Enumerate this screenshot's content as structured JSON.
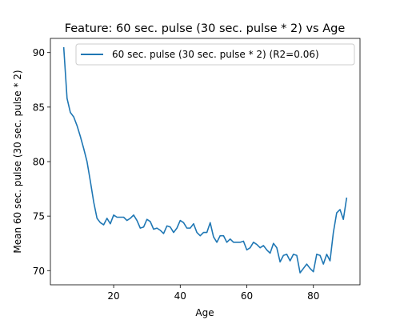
{
  "chart_data": {
    "type": "line",
    "title": "Feature: 60 sec. pulse (30 sec. pulse * 2) vs Age",
    "xlabel": "Age",
    "ylabel": "Mean 60 sec. pulse (30 sec. pulse * 2)",
    "xlim": [
      1,
      94
    ],
    "ylim": [
      68.7,
      91.3
    ],
    "xticks": [
      20,
      40,
      60,
      80
    ],
    "yticks": [
      70,
      75,
      80,
      85,
      90
    ],
    "grid": false,
    "legend_position": "top-right",
    "series": [
      {
        "name": "60 sec. pulse (30 sec. pulse * 2) (R2=0.06)",
        "color": "#1f77b4",
        "x": [
          5,
          6,
          7,
          8,
          9,
          10,
          11,
          12,
          13,
          14,
          15,
          16,
          17,
          18,
          19,
          20,
          21,
          22,
          23,
          24,
          25,
          26,
          27,
          28,
          29,
          30,
          31,
          32,
          33,
          34,
          35,
          36,
          37,
          38,
          39,
          40,
          41,
          42,
          43,
          44,
          45,
          46,
          47,
          48,
          49,
          50,
          51,
          52,
          53,
          54,
          55,
          56,
          57,
          58,
          59,
          60,
          61,
          62,
          63,
          64,
          65,
          66,
          67,
          68,
          69,
          70,
          71,
          72,
          73,
          74,
          75,
          76,
          77,
          78,
          79,
          80,
          81,
          82,
          83,
          84,
          85,
          86,
          87,
          88,
          89,
          90
        ],
        "y": [
          90.5,
          85.8,
          84.5,
          84.1,
          83.3,
          82.3,
          81.2,
          80.0,
          78.2,
          76.3,
          74.8,
          74.4,
          74.2,
          74.8,
          74.3,
          75.1,
          74.9,
          74.9,
          74.9,
          74.6,
          74.8,
          75.1,
          74.6,
          73.9,
          74.0,
          74.7,
          74.5,
          73.8,
          73.9,
          73.7,
          73.4,
          74.1,
          74.0,
          73.5,
          73.9,
          74.6,
          74.4,
          73.9,
          73.9,
          74.3,
          73.5,
          73.2,
          73.5,
          73.5,
          74.4,
          73.1,
          72.6,
          73.2,
          73.2,
          72.6,
          72.9,
          72.6,
          72.6,
          72.6,
          72.7,
          71.9,
          72.1,
          72.6,
          72.4,
          72.1,
          72.3,
          71.9,
          71.6,
          72.5,
          72.1,
          70.8,
          71.4,
          71.5,
          70.9,
          71.5,
          71.4,
          69.8,
          70.2,
          70.6,
          70.2,
          69.9,
          71.5,
          71.4,
          70.6,
          71.5,
          70.9,
          73.5,
          75.3,
          75.6,
          74.7,
          76.7
        ]
      }
    ]
  }
}
